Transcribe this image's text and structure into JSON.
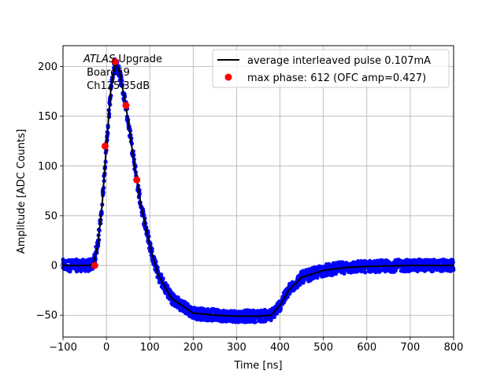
{
  "chart_data": {
    "type": "line",
    "xlabel": "Time [ns]",
    "ylabel": "Amplitude [ADC Counts]",
    "xlim": [
      -100,
      800
    ],
    "ylim": [
      -72,
      221
    ],
    "grid": true,
    "legend_position": "upper right",
    "x_ticks": [
      -100,
      0,
      100,
      200,
      300,
      400,
      500,
      600,
      700,
      800
    ],
    "x_tick_labels": [
      "−100",
      "0",
      "100",
      "200",
      "300",
      "400",
      "500",
      "600",
      "700",
      "800"
    ],
    "y_ticks": [
      -50,
      0,
      50,
      100,
      150,
      200
    ],
    "y_tick_labels": [
      "−50",
      "0",
      "50",
      "100",
      "150",
      "200"
    ],
    "annotation": {
      "line1_italic": "ATLAS",
      "line1_rest": " Upgrade",
      "line2": " Board59",
      "line3": " Ch125 35dB"
    },
    "colors": {
      "samples": "#0000ff",
      "average": "#000000",
      "max_phase": "#ff0000",
      "grid": "#b0b0b0"
    },
    "series": [
      {
        "name": "average interleaved pulse 0.107mA",
        "style": "line",
        "x": [
          -100,
          -40,
          -30,
          -20,
          -10,
          0,
          10,
          20,
          30,
          45,
          60,
          70,
          80,
          100,
          120,
          150,
          200,
          250,
          300,
          350,
          380,
          400,
          420,
          450,
          500,
          550,
          600,
          700,
          800
        ],
        "y": [
          0,
          0,
          2,
          20,
          60,
          120,
          175,
          205,
          195,
          160,
          115,
          86,
          60,
          20,
          -10,
          -33,
          -48,
          -50,
          -51,
          -51,
          -50,
          -40,
          -25,
          -12,
          -5,
          -2,
          -1,
          0,
          0
        ]
      },
      {
        "name": "max phase: 612 (OFC amp=0.427)",
        "style": "markers",
        "x": [
          -27,
          -3,
          20,
          45,
          70
        ],
        "y": [
          0,
          120,
          205,
          161,
          86
        ]
      }
    ],
    "sample_noise_band": 6
  }
}
